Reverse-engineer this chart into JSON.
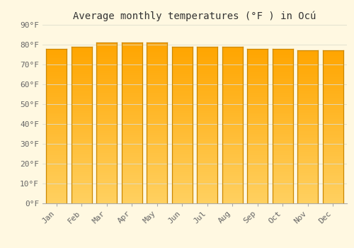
{
  "title": "Average monthly temperatures (°F ) in Ocú",
  "months": [
    "Jan",
    "Feb",
    "Mar",
    "Apr",
    "May",
    "Jun",
    "Jul",
    "Aug",
    "Sep",
    "Oct",
    "Nov",
    "Dec"
  ],
  "values": [
    78,
    79,
    81,
    81,
    81,
    79,
    79,
    79,
    78,
    78,
    77,
    77
  ],
  "bar_color_top": "#FFA500",
  "bar_color_bottom": "#FFD060",
  "bar_edge_color": "#CC8800",
  "background_color": "#FFF8E1",
  "grid_color": "#DDDDCC",
  "ylim": [
    0,
    90
  ],
  "yticks": [
    0,
    10,
    20,
    30,
    40,
    50,
    60,
    70,
    80,
    90
  ],
  "ytick_labels": [
    "0°F",
    "10°F",
    "20°F",
    "30°F",
    "40°F",
    "50°F",
    "60°F",
    "70°F",
    "80°F",
    "90°F"
  ],
  "title_fontsize": 10,
  "tick_fontsize": 8,
  "font_family": "monospace"
}
